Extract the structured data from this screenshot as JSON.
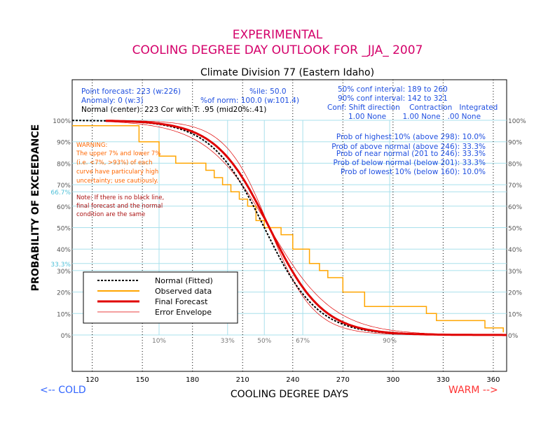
{
  "header": {
    "title_line1": "EXPERIMENTAL",
    "title_line2": "COOLING DEGREE DAY OUTLOOK FOR _JJA_ 2007",
    "subtitle": "Climate Division 77 (Eastern Idaho)"
  },
  "stats": {
    "left": [
      "Point forecast: 223 (w:226)",
      "Anomaly: 0 (w:3)",
      "Normal (center): 223  Cor with T: .95 (mid20%:.41)"
    ],
    "pct_norm": "%of norm: 100.0 (w:101.4)",
    "pctile": "%ile: 50.0",
    "conf50": "50% conf interval: 189 to 260",
    "conf90": "90% conf interval: 142 to 321",
    "conf_header": "Conf: Shift direction    Contraction   Integrated",
    "conf_values": "1.00 None       1.00 None   .00 None"
  },
  "probabilities": [
    "Prob of highest 10% (above 298): 10.0%",
    "Prob of above normal (above 246): 33.3%",
    "Prob of near normal (201 to 246): 33.3%",
    "Prob of below normal (below 201): 33.3%",
    "Prob of lowest 10% (below 160): 10.0%"
  ],
  "warning": [
    "WARNING:",
    "The upper 7% and lower 7%",
    "(i.e. <7%, >93%) of each",
    "curve have particulary high",
    "uncertainty; use cautiously."
  ],
  "note": [
    "Note: If there is no black line,",
    "final forecast and  the normal",
    "condition are the same"
  ],
  "axes": {
    "xlabel": "COOLING DEGREE DAYS",
    "ylabel": "PROBABILITY OF EXCEEDANCE",
    "cold_label": "<-- COLD",
    "warm_label": "WARM -->",
    "x_ticks": [
      120,
      150,
      180,
      210,
      240,
      270,
      300,
      330,
      360
    ],
    "y_ticks": [
      "0%",
      "10%",
      "20%",
      "30%",
      "40%",
      "50%",
      "60%",
      "70%",
      "80%",
      "90%",
      "100%"
    ],
    "ref_y_labels": [
      "66.7%",
      "33.3%"
    ]
  },
  "percentile_markers": [
    {
      "label": "10%",
      "x": 160
    },
    {
      "label": "33%",
      "x": 201
    },
    {
      "label": "50%",
      "x": 223
    },
    {
      "label": "67%",
      "x": 246
    },
    {
      "label": "90%",
      "x": 298
    }
  ],
  "legend": [
    {
      "label": "Normal (Fitted)",
      "color": "#000000",
      "style": "dashed"
    },
    {
      "label": "Observed data",
      "color": "#ffa500",
      "style": "solid"
    },
    {
      "label": "Final Forecast",
      "color": "#e00000",
      "style": "thick"
    },
    {
      "label": "Error Envelope",
      "color": "#e00000",
      "style": "thin"
    }
  ],
  "colors": {
    "title": "#d4006a",
    "stats": "#1f4fe0",
    "warning": "#ff6600",
    "note": "#aa1010",
    "grid": "#a8e0ec",
    "forecast": "#e00000",
    "observed": "#ffa500",
    "cold": "#3366ff",
    "warm": "#ff3333"
  },
  "chart_data": {
    "type": "line",
    "xlim": [
      108,
      368
    ],
    "ylim": [
      0,
      100
    ],
    "series": [
      {
        "name": "Normal (Fitted)",
        "center": 223,
        "spread": 29
      },
      {
        "name": "Final Forecast",
        "center": 226,
        "spread": 29
      },
      {
        "name": "Error Envelope",
        "center": 226,
        "spread": 35
      },
      {
        "name": "Error Envelope",
        "center": 226,
        "spread": 24
      },
      {
        "name": "Observed data",
        "x": [
          108,
          135,
          148,
          150,
          160,
          170,
          183,
          188,
          193,
          198,
          203,
          208,
          213,
          218,
          223,
          231,
          233,
          240,
          250,
          256,
          261,
          270,
          278,
          283,
          320,
          326,
          355,
          366
        ],
        "y": [
          97.5,
          97.5,
          90,
          90,
          83.3,
          80,
          80,
          76.7,
          73.3,
          70,
          66.7,
          63.3,
          60,
          53.3,
          50,
          50,
          46.7,
          40,
          33.3,
          30,
          26.7,
          20,
          20,
          13.3,
          10,
          6.7,
          3.3,
          1.2
        ]
      }
    ]
  }
}
